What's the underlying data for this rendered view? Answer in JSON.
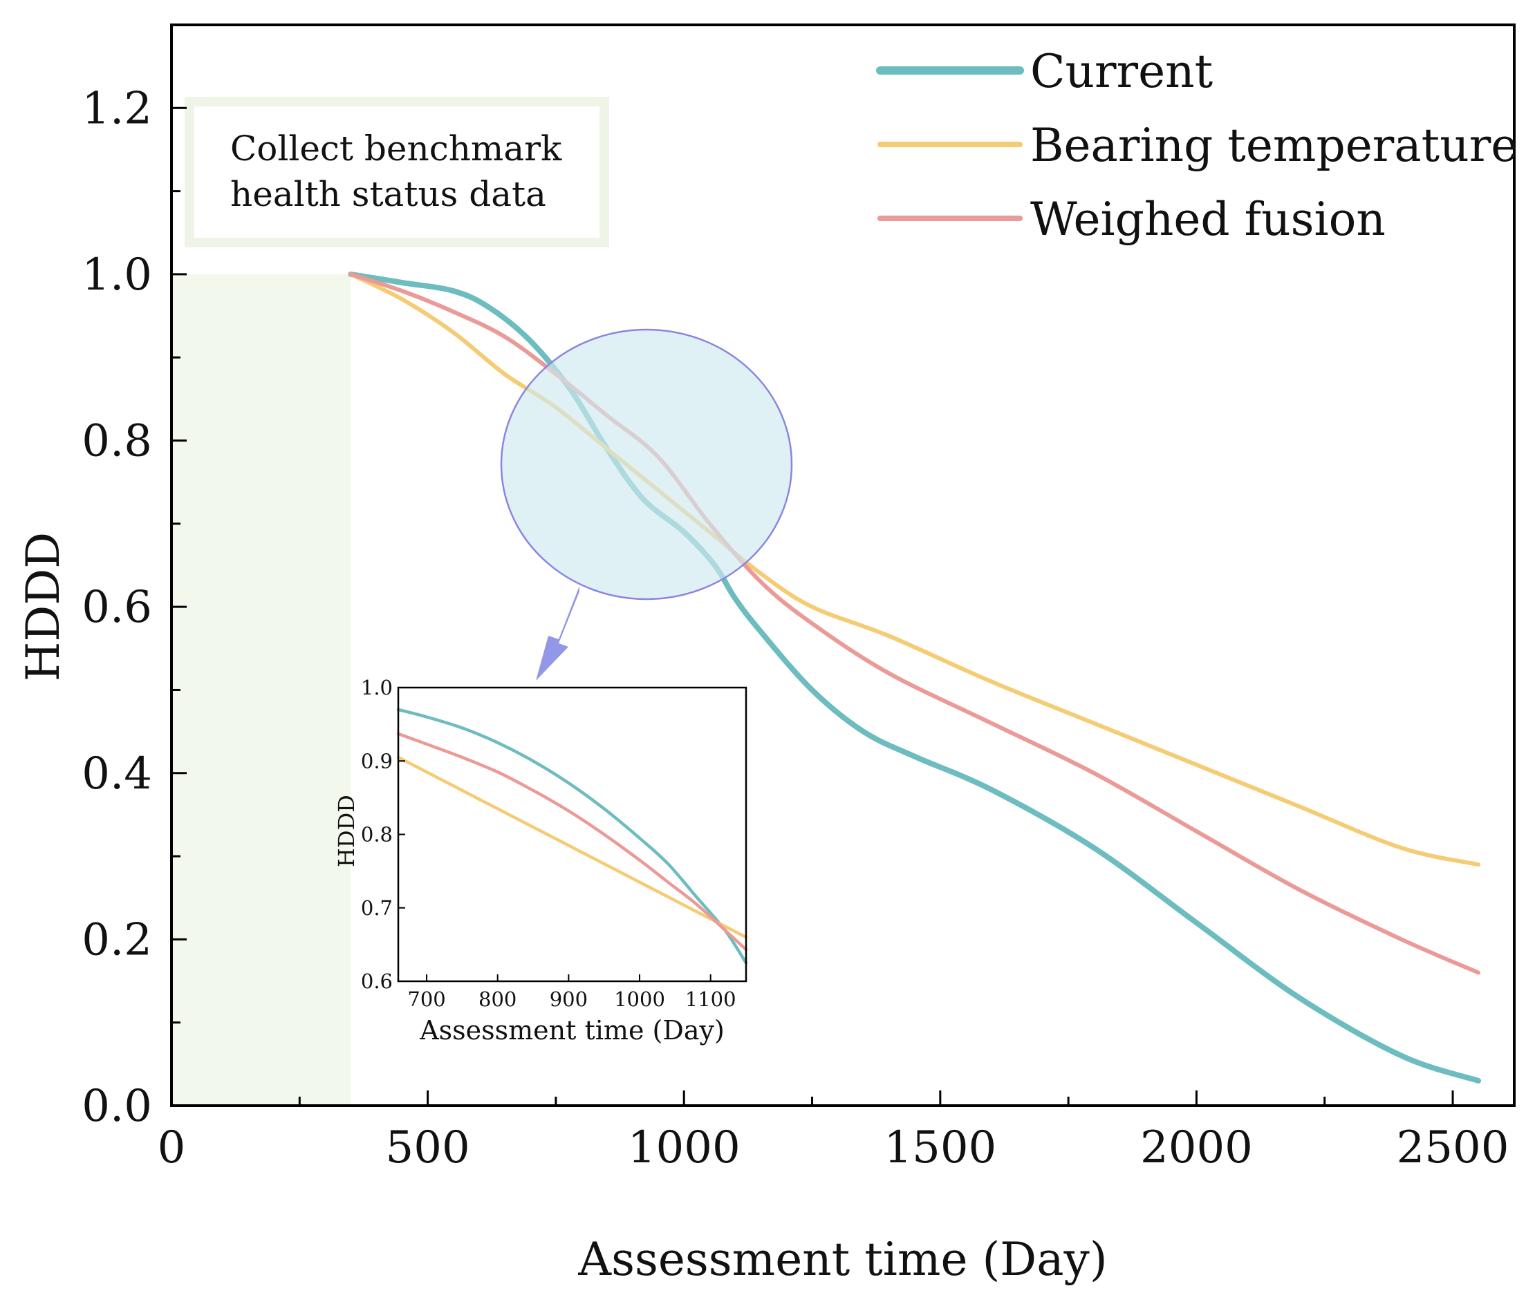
{
  "chart_data": {
    "type": "line",
    "xlabel": "Assessment time (Day)",
    "ylabel": "HDDD",
    "xlim": [
      0,
      2620
    ],
    "ylim": [
      0,
      1.3
    ],
    "x_ticks": [
      "0",
      "500",
      "1000",
      "1500",
      "2000",
      "2500"
    ],
    "y_ticks": [
      "0.0",
      "0.2",
      "0.4",
      "0.6",
      "0.8",
      "1.0",
      "1.2"
    ],
    "legend_position": "top-right",
    "annotation": {
      "lines": [
        "Collect benchmark",
        "health status data"
      ],
      "x_range": [
        0,
        350
      ],
      "y_range": [
        0,
        1.0
      ]
    },
    "series": [
      {
        "name": "Current",
        "color": "#6dbcc0",
        "x": [
          350,
          450,
          550,
          620,
          700,
          780,
          850,
          920,
          1000,
          1060,
          1100,
          1150,
          1250,
          1350,
          1450,
          1600,
          1800,
          2000,
          2200,
          2400,
          2550
        ],
        "values": [
          1.0,
          0.99,
          0.98,
          0.96,
          0.92,
          0.86,
          0.79,
          0.73,
          0.69,
          0.65,
          0.61,
          0.57,
          0.5,
          0.45,
          0.42,
          0.38,
          0.31,
          0.22,
          0.13,
          0.06,
          0.03
        ]
      },
      {
        "name": "Bearing temperature",
        "color": "#f5cb73",
        "x": [
          350,
          450,
          550,
          650,
          750,
          850,
          950,
          1050,
          1150,
          1250,
          1400,
          1600,
          1800,
          2000,
          2200,
          2400,
          2550
        ],
        "values": [
          1.0,
          0.97,
          0.93,
          0.88,
          0.84,
          0.79,
          0.74,
          0.69,
          0.64,
          0.6,
          0.565,
          0.51,
          0.46,
          0.41,
          0.36,
          0.31,
          0.29
        ]
      },
      {
        "name": "Weighed fusion",
        "color": "#ea9a97",
        "x": [
          350,
          450,
          550,
          650,
          750,
          850,
          950,
          1050,
          1150,
          1250,
          1400,
          1600,
          1800,
          2000,
          2200,
          2400,
          2550
        ],
        "values": [
          1.0,
          0.98,
          0.955,
          0.925,
          0.88,
          0.83,
          0.78,
          0.7,
          0.63,
          0.58,
          0.52,
          0.46,
          0.4,
          0.33,
          0.26,
          0.2,
          0.16
        ]
      }
    ],
    "inset": {
      "xlabel": "Assessment time (Day)",
      "ylabel": "HDDD",
      "xlim": [
        660,
        1150
      ],
      "ylim": [
        0.6,
        1.0
      ],
      "x_ticks": [
        "700",
        "800",
        "900",
        "1000",
        "1100"
      ],
      "y_ticks": [
        "0.6",
        "0.7",
        "0.8",
        "0.9",
        "1.0"
      ],
      "series": [
        {
          "name": "Current",
          "x": [
            660,
            700,
            750,
            800,
            850,
            900,
            950,
            1000,
            1040,
            1080,
            1120,
            1150
          ],
          "values": [
            0.97,
            0.96,
            0.945,
            0.925,
            0.9,
            0.87,
            0.835,
            0.795,
            0.76,
            0.715,
            0.67,
            0.625
          ]
        },
        {
          "name": "Bearing temperature",
          "x": [
            660,
            700,
            750,
            800,
            850,
            900,
            950,
            1000,
            1040,
            1080,
            1120,
            1150
          ],
          "values": [
            0.905,
            0.885,
            0.86,
            0.835,
            0.81,
            0.785,
            0.76,
            0.735,
            0.715,
            0.695,
            0.675,
            0.66
          ]
        },
        {
          "name": "Weighed fusion",
          "x": [
            660,
            700,
            750,
            800,
            850,
            900,
            950,
            1000,
            1040,
            1080,
            1120,
            1150
          ],
          "values": [
            0.937,
            0.923,
            0.905,
            0.885,
            0.86,
            0.832,
            0.8,
            0.765,
            0.735,
            0.705,
            0.67,
            0.643
          ]
        }
      ]
    }
  }
}
